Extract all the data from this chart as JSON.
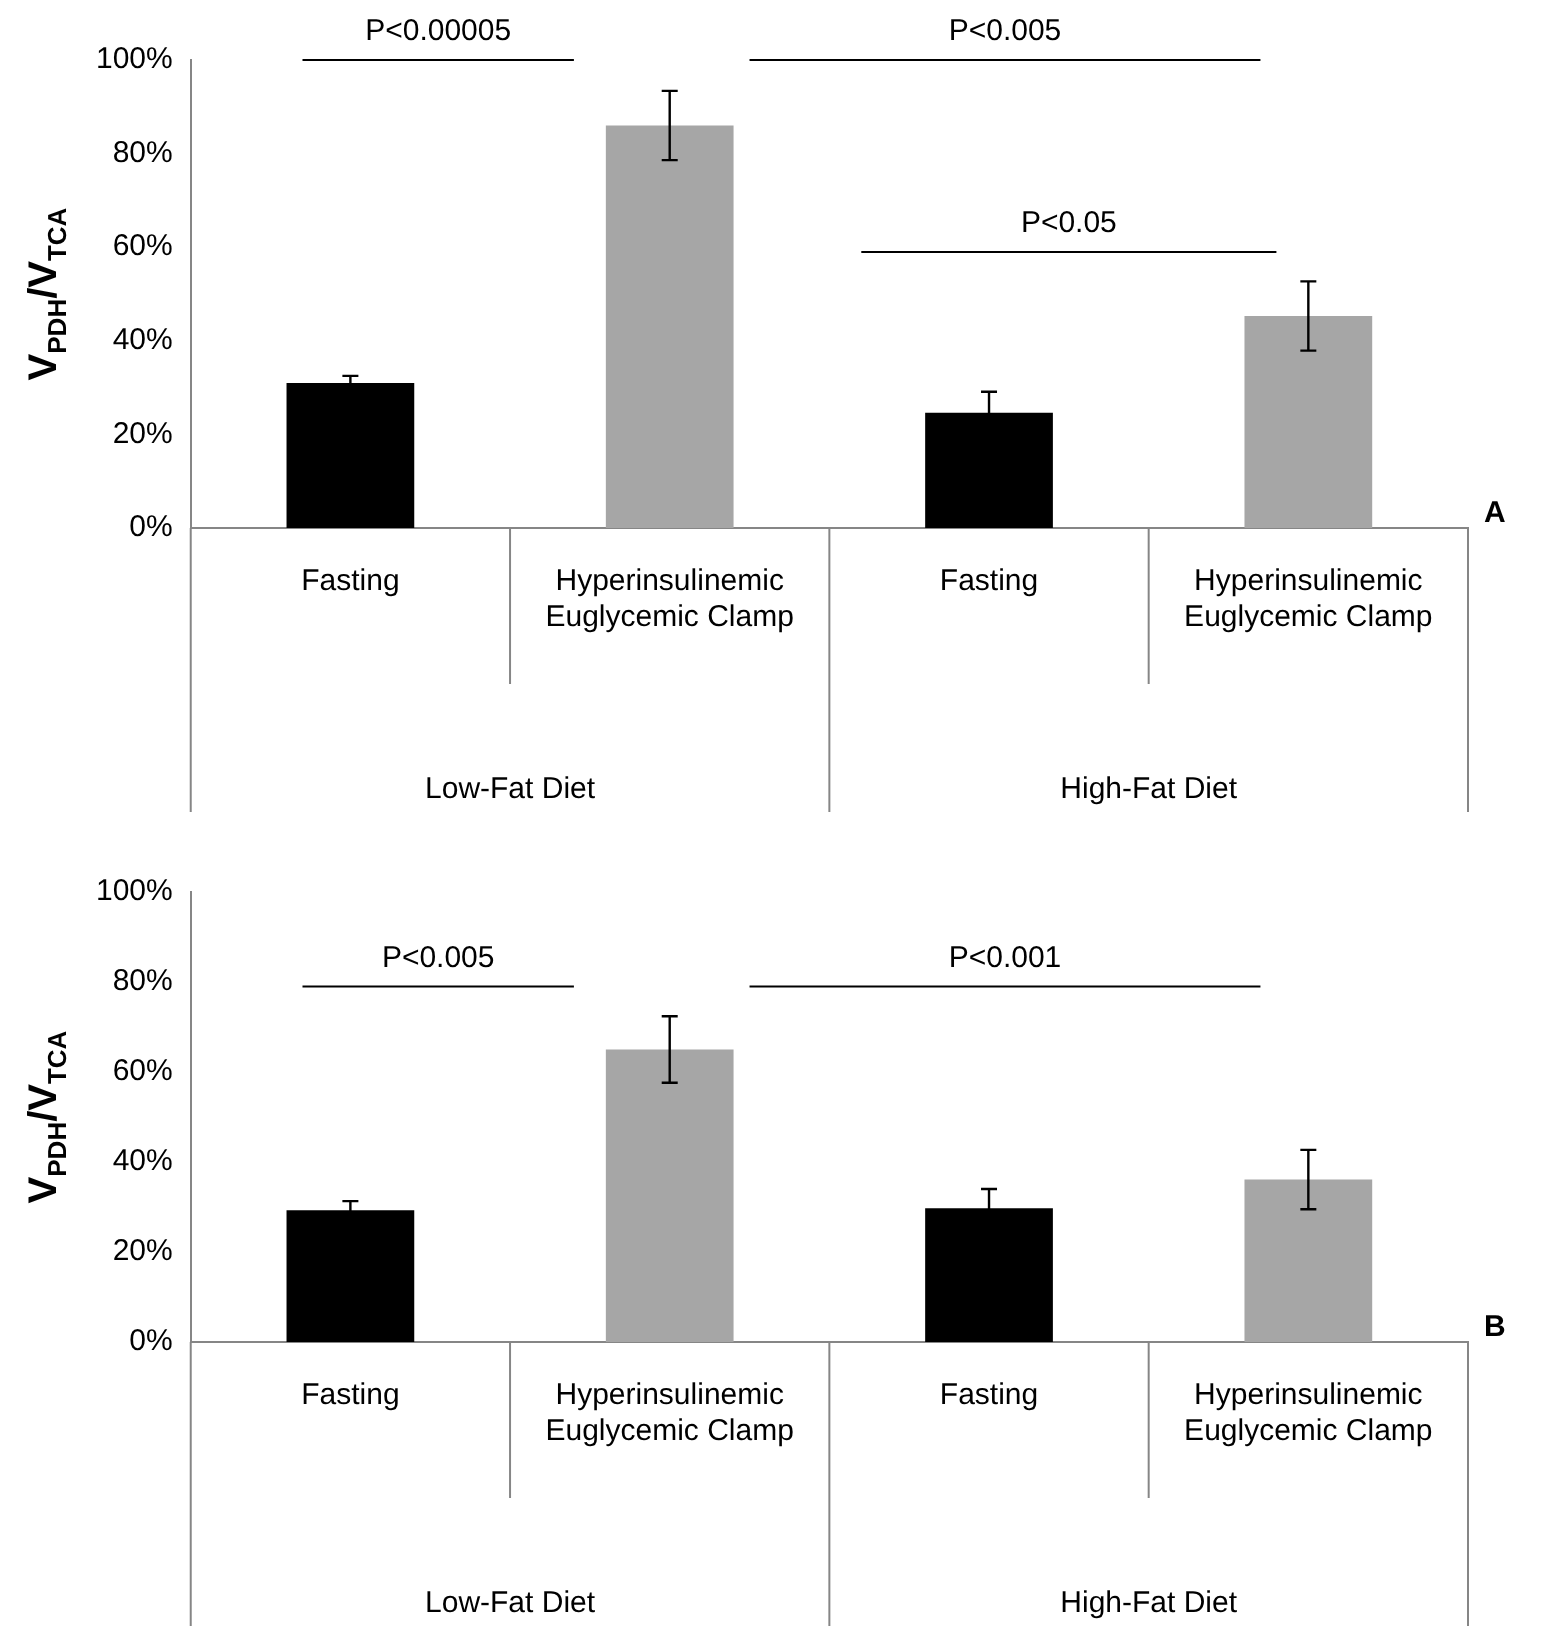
{
  "chart_data": [
    {
      "type": "bar",
      "categories": [
        "Fasting",
        "Hyperinsulinemic Euglycemic Clamp",
        "Fasting",
        "Hyperinsulinemic Euglycemic Clamp"
      ],
      "values": [
        31,
        86,
        24.6,
        45.3
      ],
      "colors": [
        "#000000",
        "#a6a6a6",
        "#000000",
        "#a6a6a6"
      ],
      "errors": [
        1.5,
        7.4,
        4.5,
        7.4
      ],
      "ylabel": "V$_{PDH}$/V$_{TCA}$",
      "ylim": [
        0,
        100
      ],
      "yticks": [
        {
          "value": 0,
          "label": "0%"
        },
        {
          "value": 20,
          "label": "20%"
        },
        {
          "value": 40,
          "label": "40%"
        },
        {
          "value": 60,
          "label": "60%"
        },
        {
          "value": 80,
          "label": "80%"
        },
        {
          "value": 100,
          "label": "100%"
        }
      ],
      "grid": false,
      "legend": false,
      "annotations": [
        "P<0.00005",
        "P<0.005",
        "P<0.05",
        "Low-Fat Diet",
        "High-Fat Diet",
        "A"
      ]
    },
    {
      "type": "bar",
      "categories": [
        "Fasting",
        "Hyperinsulinemic Euglycemic Clamp",
        "Fasting",
        "Hyperinsulinemic Euglycemic Clamp"
      ],
      "values": [
        29.3,
        65,
        29.7,
        36.1
      ],
      "colors": [
        "#000000",
        "#a6a6a6",
        "#000000",
        "#a6a6a6"
      ],
      "errors": [
        2,
        7.4,
        4.3,
        6.6
      ],
      "ylabel": "V$_{PDH}$/V$_{TCA}$",
      "ylim": [
        0,
        100
      ],
      "yticks": [
        {
          "value": 0,
          "label": "0%"
        },
        {
          "value": 20,
          "label": "20%"
        },
        {
          "value": 40,
          "label": "40%"
        },
        {
          "value": 60,
          "label": "60%"
        },
        {
          "value": 80,
          "label": "80%"
        },
        {
          "value": 100,
          "label": "100%"
        }
      ],
      "grid": false,
      "legend": false,
      "annotations": [
        "P<0.005",
        "P<0.001",
        "Low-Fat Diet",
        "High-Fat Diet",
        "B"
      ]
    }
  ]
}
